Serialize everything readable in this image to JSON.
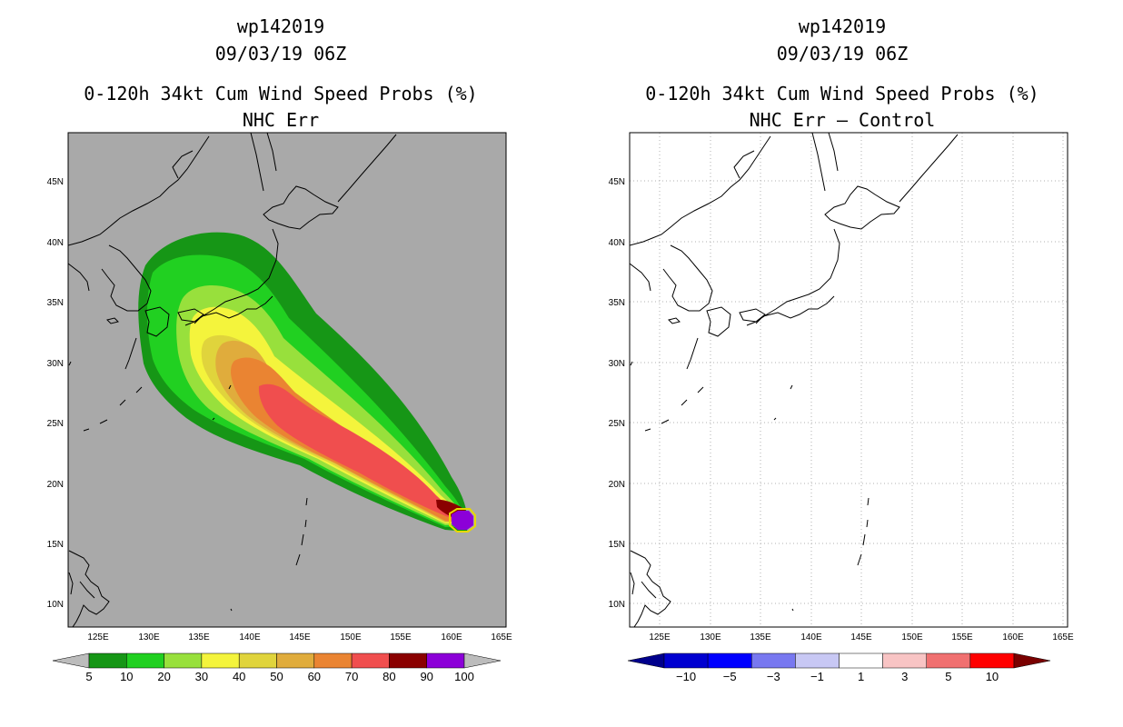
{
  "panels": [
    {
      "storm_id": "wp142019",
      "datetime": "09/03/19 06Z",
      "product": "0-120h 34kt Cum Wind Speed Probs (%)",
      "subtitle": "NHC Err",
      "legend": {
        "labels": [
          "5",
          "10",
          "20",
          "30",
          "40",
          "50",
          "60",
          "70",
          "80",
          "90",
          "100"
        ],
        "colors": [
          "#169616",
          "#21d021",
          "#98e03c",
          "#f4f43c",
          "#e0d43c",
          "#e0ac3c",
          "#ea8432",
          "#f04e4e",
          "#8a0000",
          "#8c00d8"
        ],
        "end_colors": [
          "#bcbcbc",
          "#bcbcbc"
        ]
      }
    },
    {
      "storm_id": "wp142019",
      "datetime": "09/03/19 06Z",
      "product": "0-120h 34kt Cum Wind Speed Probs (%)",
      "subtitle": "NHC Err – Control",
      "legend": {
        "labels": [
          "−10",
          "−5",
          "−3",
          "−1",
          "1",
          "3",
          "5",
          "10"
        ],
        "colors": [
          "#0000d0",
          "#0000ff",
          "#7878f0",
          "#c8c8f4",
          "#ffffff",
          "#f8c4c4",
          "#f07070",
          "#ff0000"
        ],
        "end_colors": [
          "#00008c",
          "#7a0000"
        ]
      }
    }
  ],
  "axes": {
    "lon_labels": [
      "125E",
      "130E",
      "135E",
      "140E",
      "145E",
      "150E",
      "155E",
      "160E",
      "165E"
    ],
    "lat_labels": [
      "10N",
      "15N",
      "20N",
      "25N",
      "30N",
      "35N",
      "40N",
      "45N"
    ]
  },
  "colors": {
    "land_gray": "#a9a9a9",
    "grid_gray": "#b0b0b0",
    "prob_5": "#169616",
    "prob_10": "#21d021",
    "prob_20": "#98e03c",
    "prob_30": "#f4f43c",
    "prob_40": "#e0d43c",
    "prob_50": "#e0ac3c",
    "prob_60": "#ea8432",
    "prob_70": "#f04e4e",
    "prob_80": "#8a0000",
    "prob_100": "#8c00d8"
  }
}
